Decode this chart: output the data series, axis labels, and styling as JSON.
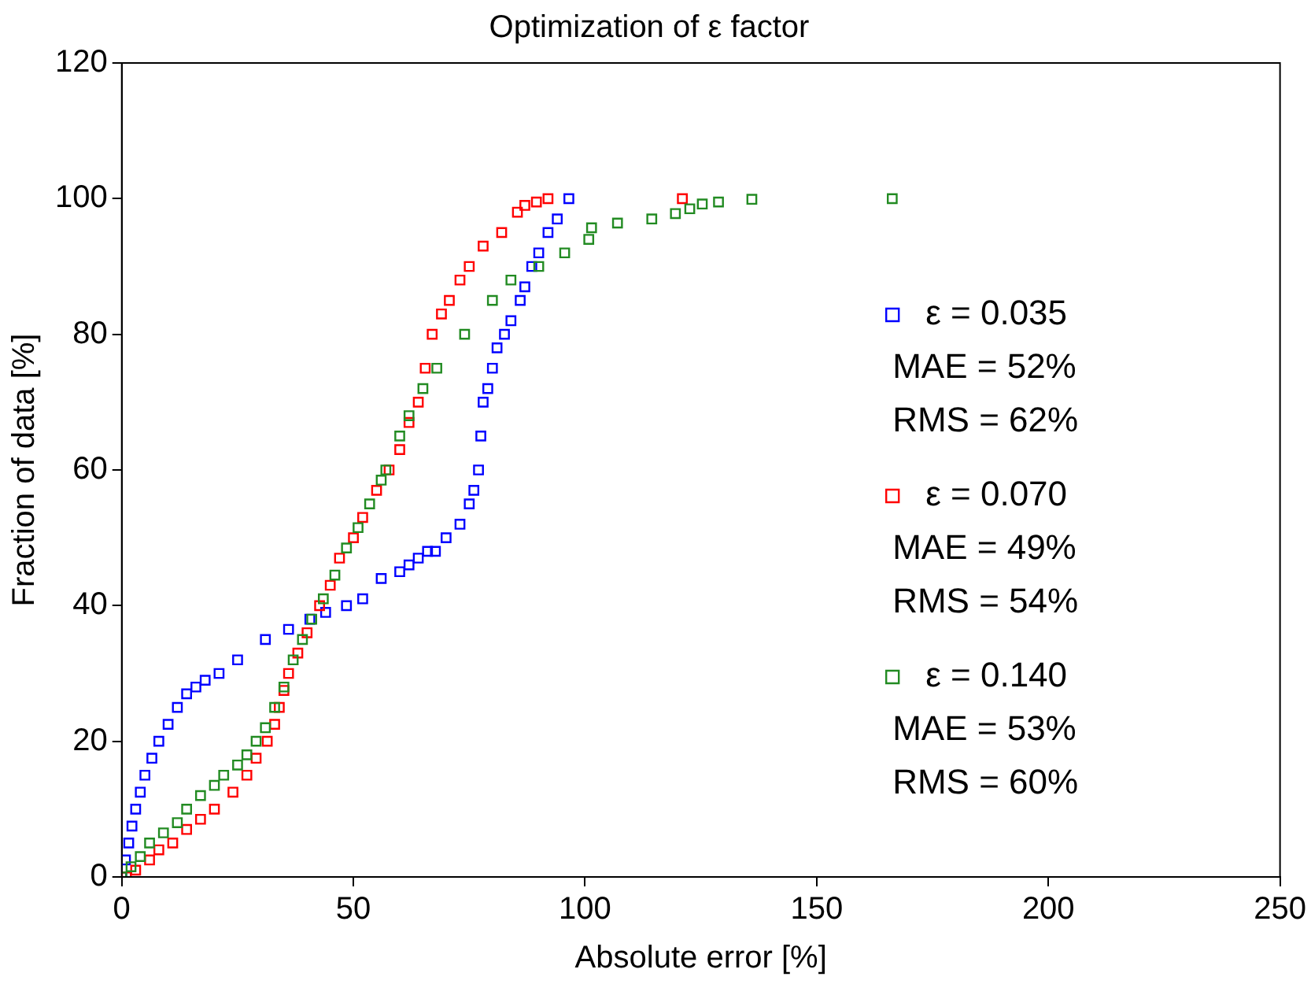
{
  "chart_data": {
    "type": "scatter",
    "title": "Optimization of ε factor",
    "xlabel": "Absolute error [%]",
    "ylabel": "Fraction of data [%]",
    "xlim": [
      0,
      250
    ],
    "xticks": [
      0,
      50,
      100,
      150,
      200,
      250
    ],
    "ylim": [
      0,
      120
    ],
    "yticks": [
      0,
      20,
      40,
      60,
      80,
      100,
      120
    ],
    "grid": false,
    "legend": "right",
    "marker": "square",
    "annotations": [
      "MAE = 52%",
      "RMS = 62%",
      "MAE = 49%",
      "RMS = 54%",
      "MAE = 53%",
      "RMS = 60%"
    ],
    "series": [
      {
        "name": "ε = 0.035",
        "color": "#0000ff",
        "x": [
          0,
          0.8,
          1.5,
          2.2,
          3,
          4,
          5,
          6.5,
          8,
          10,
          12,
          14,
          16,
          18,
          21,
          25,
          31,
          36,
          40.6,
          44,
          48.5,
          52,
          56,
          60,
          62,
          64,
          66,
          67.7,
          70,
          73,
          75,
          76,
          77,
          77.5,
          78,
          79,
          80,
          81,
          82.6,
          84,
          86,
          87,
          88.5,
          90,
          92,
          94,
          96.5
        ],
        "values": [
          0,
          2.5,
          5,
          7.5,
          10,
          12.5,
          15,
          17.5,
          20,
          22.5,
          25,
          27,
          28,
          29,
          30,
          32,
          35,
          36.5,
          38,
          39,
          40,
          41,
          44,
          45,
          46,
          47,
          48,
          48,
          50,
          52,
          55,
          57,
          60,
          65,
          70,
          72,
          75,
          78,
          80,
          82,
          85,
          87,
          90,
          92,
          95,
          97,
          100
        ]
      },
      {
        "name": "ε = 0.070",
        "color": "#ff0000",
        "x": [
          1,
          3,
          6,
          8,
          11,
          14,
          17,
          20,
          24,
          27,
          29,
          31.4,
          33,
          34,
          35,
          36,
          38,
          40,
          42.7,
          45,
          47,
          50,
          52,
          55,
          57.7,
          60,
          62,
          64,
          65.5,
          67,
          69,
          70.7,
          73,
          75,
          78,
          82,
          85.4,
          87,
          89.5,
          92,
          121
        ],
        "values": [
          0,
          1,
          2.5,
          4,
          5,
          7,
          8.5,
          10,
          12.5,
          15,
          17.5,
          20,
          22.5,
          25,
          27.5,
          30,
          33,
          36,
          40,
          43,
          47,
          50,
          53,
          57,
          60,
          63,
          67,
          70,
          75,
          80,
          83,
          85,
          88,
          90,
          93,
          95,
          98,
          99,
          99.5,
          100,
          100
        ]
      },
      {
        "name": "ε = 0.140",
        "color": "#228b22",
        "x": [
          0,
          2,
          4,
          6,
          9,
          12,
          14,
          17,
          20,
          22,
          25,
          27,
          29,
          31,
          33,
          35,
          37,
          39,
          41,
          43.5,
          46,
          48.5,
          51,
          53.5,
          56,
          57,
          60,
          62,
          65,
          68,
          74,
          80,
          84,
          90,
          95.6,
          100.8,
          101.4,
          107,
          114.4,
          119.5,
          122.6,
          125.3,
          128.8,
          136,
          166.3
        ],
        "values": [
          0,
          1.5,
          3,
          5,
          6.5,
          8,
          10,
          12,
          13.5,
          15,
          16.5,
          18,
          20,
          22,
          25,
          28,
          32,
          35,
          38,
          41,
          44.5,
          48.5,
          51.5,
          55,
          58.5,
          60,
          65,
          68,
          72,
          75,
          80,
          85,
          88,
          90,
          92,
          94,
          95.7,
          96.4,
          97,
          97.8,
          98.5,
          99.2,
          99.5,
          99.9,
          100
        ]
      }
    ]
  }
}
